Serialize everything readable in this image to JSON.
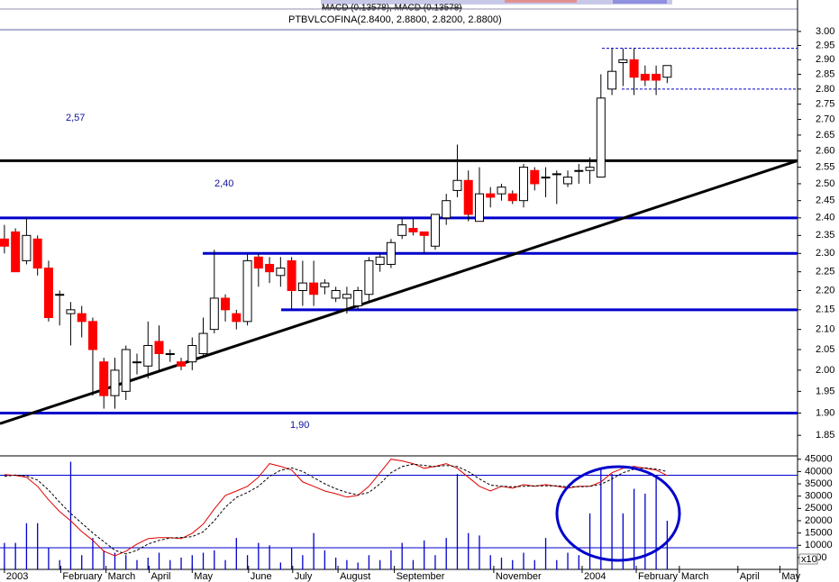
{
  "header": {
    "indicator": "MACD (0.13578), MACD (0.13578)",
    "title": "PTBVLCOFINA(2.8400, 2.8800, 2.8200, 2.8800)"
  },
  "chart_data": [
    {
      "type": "candlestick",
      "categories": [
        null,
        null,
        null,
        null,
        null,
        null,
        null,
        null,
        null,
        null,
        null,
        null,
        null,
        null,
        null,
        null,
        null,
        null,
        null,
        null,
        null,
        null,
        null,
        null,
        null,
        null,
        null,
        null,
        null,
        null,
        null,
        null,
        null,
        null,
        null,
        null,
        null,
        null,
        null,
        null,
        null,
        null,
        null,
        null,
        null,
        null,
        null,
        null,
        null,
        null,
        null,
        null,
        null,
        null,
        null,
        null,
        null,
        null,
        null,
        null,
        null
      ],
      "open": [
        2.34,
        2.36,
        2.28,
        2.34,
        2.26,
        2.19,
        2.14,
        2.14,
        2.12,
        2.02,
        1.94,
        1.95,
        2.02,
        2.01,
        2.07,
        2.04,
        2.02,
        2.02,
        2.04,
        2.1,
        2.18,
        2.14,
        2.12,
        2.29,
        2.27,
        2.24,
        2.28,
        2.2,
        2.22,
        2.21,
        2.18,
        2.18,
        2.16,
        2.19,
        2.27,
        2.27,
        2.35,
        2.37,
        2.36,
        2.32,
        2.4,
        2.48,
        2.51,
        2.39,
        2.47,
        2.47,
        2.47,
        2.45,
        2.54,
        2.52,
        2.53,
        2.5,
        2.54,
        2.54,
        2.52,
        2.8,
        2.89,
        2.9,
        2.85,
        2.85,
        2.84
      ],
      "high": [
        2.38,
        2.37,
        2.4,
        2.35,
        2.28,
        2.2,
        2.17,
        2.16,
        2.13,
        2.03,
        2.03,
        2.06,
        2.04,
        2.12,
        2.11,
        2.05,
        2.03,
        2.08,
        2.13,
        2.31,
        2.19,
        2.15,
        2.3,
        2.3,
        2.29,
        2.29,
        2.29,
        2.28,
        2.28,
        2.23,
        2.21,
        2.21,
        2.21,
        2.29,
        2.3,
        2.34,
        2.4,
        2.4,
        2.36,
        2.41,
        2.47,
        2.62,
        2.54,
        2.55,
        2.49,
        2.5,
        2.48,
        2.56,
        2.55,
        2.55,
        2.54,
        2.54,
        2.56,
        2.58,
        2.85,
        2.94,
        2.94,
        2.94,
        2.88,
        2.88,
        2.88
      ],
      "low": [
        2.3,
        2.25,
        2.27,
        2.24,
        2.12,
        2.11,
        2.06,
        2.08,
        1.94,
        1.91,
        1.91,
        1.93,
        1.99,
        1.98,
        2.0,
        2.02,
        2.0,
        2.0,
        2.03,
        2.09,
        2.12,
        2.1,
        2.11,
        2.21,
        2.22,
        2.21,
        2.15,
        2.16,
        2.16,
        2.19,
        2.17,
        2.14,
        2.15,
        2.17,
        2.25,
        2.26,
        2.34,
        2.35,
        2.3,
        2.31,
        2.38,
        2.46,
        2.39,
        2.39,
        2.43,
        2.45,
        2.44,
        2.43,
        2.48,
        2.46,
        2.44,
        2.49,
        2.5,
        2.5,
        2.52,
        2.78,
        2.81,
        2.78,
        2.81,
        2.78,
        2.82
      ],
      "close": [
        2.32,
        2.25,
        2.35,
        2.26,
        2.13,
        2.19,
        2.15,
        2.12,
        2.05,
        1.94,
        2.0,
        2.05,
        2.02,
        2.06,
        2.04,
        2.04,
        2.01,
        2.06,
        2.09,
        2.18,
        2.15,
        2.12,
        2.28,
        2.26,
        2.25,
        2.26,
        2.2,
        2.22,
        2.19,
        2.22,
        2.2,
        2.19,
        2.2,
        2.28,
        2.29,
        2.33,
        2.38,
        2.36,
        2.35,
        2.41,
        2.45,
        2.51,
        2.41,
        2.47,
        2.46,
        2.49,
        2.45,
        2.55,
        2.5,
        2.52,
        2.53,
        2.52,
        2.54,
        2.55,
        2.77,
        2.86,
        2.9,
        2.84,
        2.83,
        2.83,
        2.88
      ],
      "up_color": "#ffffff",
      "down_color": "#ff0000",
      "log_scale": true,
      "ylim": [
        1.807,
        3.065
      ],
      "yticks": [
        1.85,
        {
          "value": 1.9,
          "label": "1.90"
        },
        1.95,
        {
          "value": 2,
          "label": "2.00"
        },
        2.05,
        {
          "value": 2.1,
          "label": "2.10"
        },
        2.15,
        {
          "value": 2.2,
          "label": "2.20"
        },
        2.25,
        {
          "value": 2.3,
          "label": "2.30"
        },
        2.35,
        {
          "value": 2.4,
          "label": "2.40"
        },
        2.45,
        {
          "value": 2.5,
          "label": "2.50"
        },
        2.55,
        {
          "value": 2.6,
          "label": "2.60"
        },
        2.65,
        {
          "value": 2.7,
          "label": "2.70"
        },
        2.75,
        {
          "value": 2.8,
          "label": "2.80"
        },
        2.85,
        {
          "value": 2.9,
          "label": "2.90"
        },
        2.95,
        {
          "value": 3,
          "label": "3.00"
        }
      ],
      "xlim": [
        -0.4,
        71.8
      ],
      "xticks": [
        {
          "value": 0,
          "label": "2003"
        },
        {
          "value": 5.1,
          "label": "February"
        },
        {
          "value": 9.2,
          "label": "March"
        },
        {
          "value": 13.1,
          "label": "April"
        },
        {
          "value": 17,
          "label": "May"
        },
        {
          "value": 22.1,
          "label": "June"
        },
        {
          "value": 26.1,
          "label": "July"
        },
        {
          "value": 30.2,
          "label": "August"
        },
        {
          "value": 35.3,
          "label": "September"
        },
        {
          "value": 44.3,
          "label": "November"
        },
        {
          "value": 52.3,
          "label": "2004"
        },
        {
          "value": 57.2,
          "label": "February"
        },
        {
          "value": 61.1,
          "label": "March"
        },
        {
          "value": 66.4,
          "label": "April"
        },
        {
          "value": 70.2,
          "label": "May"
        }
      ],
      "levels": [
        2.57,
        2.4,
        2.3,
        2.15,
        1.9
      ],
      "level_colors": [
        "#000000",
        "#0000cc",
        "#0000cc",
        "#0000cc",
        "#0000cc"
      ],
      "dashed_levels": [
        2.94,
        2.8
      ],
      "trendline": [
        [
          -0.4,
          1.876
        ],
        [
          71.8,
          2.57
        ]
      ],
      "annotations": [
        "2,57",
        "2,40",
        "1,90"
      ]
    },
    {
      "type": "volume",
      "values": [
        11000,
        11000,
        19000,
        19000,
        9000,
        4000,
        44000,
        6000,
        13000,
        8000,
        7000,
        6000,
        4000,
        5000,
        7000,
        4000,
        5000,
        6000,
        7000,
        8000,
        4000,
        13000,
        6000,
        11000,
        10000,
        3000,
        9000,
        6000,
        15000,
        8000,
        5000,
        4000,
        3000,
        6000,
        4000,
        8000,
        11000,
        4000,
        12000,
        6000,
        13000,
        39000,
        15000,
        14000,
        6000,
        5000,
        4000,
        7000,
        4000,
        13000,
        4000,
        7000,
        6000,
        23000,
        41000,
        39000,
        23000,
        33000,
        31000,
        38000,
        20000
      ],
      "color": "#0000cc",
      "lines": [
        {
          "color": "#e00000",
          "dashed": false,
          "values": [
            38800,
            38400,
            37700,
            34000,
            28500,
            23700,
            20000,
            15600,
            12000,
            7600,
            5700,
            7600,
            10500,
            12700,
            13100,
            13100,
            12700,
            14900,
            18600,
            24800,
            30300,
            32100,
            34000,
            37700,
            43200,
            42100,
            40600,
            35800,
            34000,
            32100,
            31000,
            29600,
            30300,
            34000,
            39500,
            45000,
            44300,
            43200,
            41300,
            42100,
            43200,
            41300,
            37700,
            34000,
            32100,
            34000,
            33200,
            34700,
            34000,
            34700,
            34000,
            33200,
            34000,
            34000,
            35800,
            39500,
            41300,
            42100,
            41300,
            40600,
            38400
          ]
        },
        {
          "color": "#000000",
          "dashed": true,
          "values": [
            38000,
            38600,
            38200,
            36500,
            32500,
            27500,
            23000,
            19000,
            15000,
            11500,
            8000,
            6500,
            8000,
            10500,
            12000,
            13000,
            13200,
            13500,
            15500,
            20000,
            25500,
            29500,
            31500,
            34000,
            38000,
            40500,
            41500,
            40000,
            37500,
            35000,
            33000,
            31500,
            30500,
            31500,
            35000,
            39500,
            42000,
            43000,
            42500,
            42000,
            42500,
            42000,
            40000,
            37000,
            34500,
            34000,
            33800,
            34000,
            34200,
            34200,
            34200,
            33800,
            33800,
            34000,
            34800,
            37000,
            39500,
            41000,
            41500,
            41000,
            40000
          ]
        }
      ],
      "hlines": [
        38500,
        9000
      ],
      "ylim": [
        0,
        46000
      ],
      "yticks": [
        5000,
        10000,
        15000,
        20000,
        25000,
        30000,
        35000,
        40000,
        45000
      ],
      "unit_label": "x10"
    }
  ]
}
